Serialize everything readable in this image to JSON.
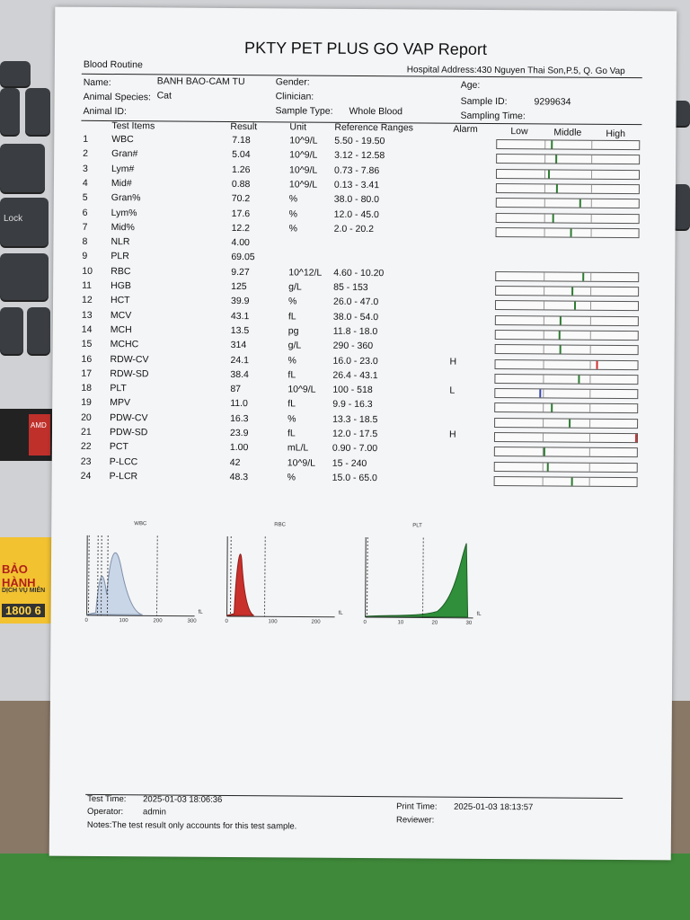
{
  "report_title": "PKTY PET PLUS GO VAP Report",
  "header": {
    "section": "Blood Routine",
    "hospital_address": "Hospital Address:430 Nguyen Thai Son,P.5, Q. Go Vap",
    "name_label": "Name:",
    "name_value": "BANH BAO-CAM TU",
    "gender_label": "Gender:",
    "age_label": "Age:",
    "species_label": "Animal Species:",
    "species_value": "Cat",
    "clinician_label": "Clinician:",
    "sample_id_label": "Sample ID:",
    "sample_id_value": "9299634",
    "animal_id_label": "Animal ID:",
    "sample_type_label": "Sample Type:",
    "sample_type_value": "Whole Blood",
    "sampling_time_label": "Sampling Time:"
  },
  "columns": {
    "test_items": "Test Items",
    "result": "Result",
    "unit": "Unit",
    "ref": "Reference Ranges",
    "alarm": "Alarm",
    "low": "Low",
    "middle": "Middle",
    "high": "High"
  },
  "rows": [
    {
      "n": "1",
      "item": "WBC",
      "result": "7.18",
      "unit": "10^9/L",
      "ref": "5.50 - 19.50",
      "alarm": "",
      "bar": true,
      "pos": 0.38,
      "color": "#2e7d32"
    },
    {
      "n": "2",
      "item": "Gran#",
      "result": "5.04",
      "unit": "10^9/L",
      "ref": "3.12 - 12.58",
      "alarm": "",
      "bar": true,
      "pos": 0.41,
      "color": "#2e7d32"
    },
    {
      "n": "3",
      "item": "Lym#",
      "result": "1.26",
      "unit": "10^9/L",
      "ref": "0.73 - 7.86",
      "alarm": "",
      "bar": true,
      "pos": 0.36,
      "color": "#2e7d32"
    },
    {
      "n": "4",
      "item": "Mid#",
      "result": "0.88",
      "unit": "10^9/L",
      "ref": "0.13 - 3.41",
      "alarm": "",
      "bar": true,
      "pos": 0.42,
      "color": "#2e7d32"
    },
    {
      "n": "5",
      "item": "Gran%",
      "result": "70.2",
      "unit": "%",
      "ref": "38.0 - 80.0",
      "alarm": "",
      "bar": true,
      "pos": 0.58,
      "color": "#2e7d32"
    },
    {
      "n": "6",
      "item": "Lym%",
      "result": "17.6",
      "unit": "%",
      "ref": "12.0 - 45.0",
      "alarm": "",
      "bar": true,
      "pos": 0.39,
      "color": "#2e7d32"
    },
    {
      "n": "7",
      "item": "Mid%",
      "result": "12.2",
      "unit": "%",
      "ref": "2.0 - 20.2",
      "alarm": "",
      "bar": true,
      "pos": 0.52,
      "color": "#2e7d32"
    },
    {
      "n": "8",
      "item": "NLR",
      "result": "4.00",
      "unit": "",
      "ref": "",
      "alarm": "",
      "bar": false
    },
    {
      "n": "9",
      "item": "PLR",
      "result": "69.05",
      "unit": "",
      "ref": "",
      "alarm": "",
      "bar": false
    },
    {
      "n": "10",
      "item": "RBC",
      "result": "9.27",
      "unit": "10^12/L",
      "ref": "4.60 - 10.20",
      "alarm": "",
      "bar": true,
      "pos": 0.61,
      "color": "#2e7d32"
    },
    {
      "n": "11",
      "item": "HGB",
      "result": "125",
      "unit": "g/L",
      "ref": "85 - 153",
      "alarm": "",
      "bar": true,
      "pos": 0.53,
      "color": "#2e7d32"
    },
    {
      "n": "12",
      "item": "HCT",
      "result": "39.9",
      "unit": "%",
      "ref": "26.0 - 47.0",
      "alarm": "",
      "bar": true,
      "pos": 0.55,
      "color": "#2e7d32"
    },
    {
      "n": "13",
      "item": "MCV",
      "result": "43.1",
      "unit": "fL",
      "ref": "38.0 - 54.0",
      "alarm": "",
      "bar": true,
      "pos": 0.45,
      "color": "#2e7d32"
    },
    {
      "n": "14",
      "item": "MCH",
      "result": "13.5",
      "unit": "pg",
      "ref": "11.8 - 18.0",
      "alarm": "",
      "bar": true,
      "pos": 0.44,
      "color": "#2e7d32"
    },
    {
      "n": "15",
      "item": "MCHC",
      "result": "314",
      "unit": "g/L",
      "ref": "290 - 360",
      "alarm": "",
      "bar": true,
      "pos": 0.45,
      "color": "#2e7d32"
    },
    {
      "n": "16",
      "item": "RDW-CV",
      "result": "24.1",
      "unit": "%",
      "ref": "16.0 - 23.0",
      "alarm": "H",
      "bar": true,
      "pos": 0.71,
      "color": "#d32f2f"
    },
    {
      "n": "17",
      "item": "RDW-SD",
      "result": "38.4",
      "unit": "fL",
      "ref": "26.4 - 43.1",
      "alarm": "",
      "bar": true,
      "pos": 0.58,
      "color": "#2e7d32"
    },
    {
      "n": "18",
      "item": "PLT",
      "result": "87",
      "unit": "10^9/L",
      "ref": "100 - 518",
      "alarm": "L",
      "bar": true,
      "pos": 0.31,
      "color": "#3a46b0"
    },
    {
      "n": "19",
      "item": "MPV",
      "result": "11.0",
      "unit": "fL",
      "ref": "9.9 - 16.3",
      "alarm": "",
      "bar": true,
      "pos": 0.39,
      "color": "#2e7d32"
    },
    {
      "n": "20",
      "item": "PDW-CV",
      "result": "16.3",
      "unit": "%",
      "ref": "13.3 - 18.5",
      "alarm": "",
      "bar": true,
      "pos": 0.52,
      "color": "#2e7d32"
    },
    {
      "n": "21",
      "item": "PDW-SD",
      "result": "23.9",
      "unit": "fL",
      "ref": "12.0 - 17.5",
      "alarm": "H",
      "bar": true,
      "pos": 0.99,
      "color": "#d32f2f"
    },
    {
      "n": "22",
      "item": "PCT",
      "result": "1.00",
      "unit": "mL/L",
      "ref": "0.90 - 7.00",
      "alarm": "",
      "bar": true,
      "pos": 0.34,
      "color": "#2e7d32"
    },
    {
      "n": "23",
      "item": "P-LCC",
      "result": "42",
      "unit": "10^9/L",
      "ref": "15 - 240",
      "alarm": "",
      "bar": true,
      "pos": 0.37,
      "color": "#2e7d32"
    },
    {
      "n": "24",
      "item": "P-LCR",
      "result": "48.3",
      "unit": "%",
      "ref": "15.0 - 65.0",
      "alarm": "",
      "bar": true,
      "pos": 0.54,
      "color": "#2e7d32"
    }
  ],
  "histograms": [
    {
      "label": "WBC",
      "unit": "fL",
      "ticks": [
        "0",
        "100",
        "200",
        "300"
      ],
      "color": "#c9d6e8",
      "stroke": "#7e8fa8"
    },
    {
      "label": "RBC",
      "unit": "fL",
      "ticks": [
        "0",
        "100",
        "200"
      ],
      "color": "#c9302c",
      "stroke": "#8e1c18"
    },
    {
      "label": "PLT",
      "unit": "fL",
      "ticks": [
        "0",
        "10",
        "20",
        "30"
      ],
      "color": "#2f8f3a",
      "stroke": "#1c5e24"
    }
  ],
  "footer": {
    "test_time_label": "Test Time:",
    "test_time_value": "2025-01-03 18:06:36",
    "operator_label": "Operator:",
    "operator_value": "admin",
    "notes": "Notes:The test result only accounts for this test sample.",
    "print_time_label": "Print Time:",
    "print_time_value": "2025-01-03 18:13:57",
    "reviewer_label": "Reviewer:"
  },
  "background": {
    "promo_line1": "BẢO HÀNH",
    "promo_line2": "DỊCH VỤ MIỄN",
    "promo_line3": "1800 6",
    "key_lock": "Lock",
    "amd": "AMD"
  }
}
